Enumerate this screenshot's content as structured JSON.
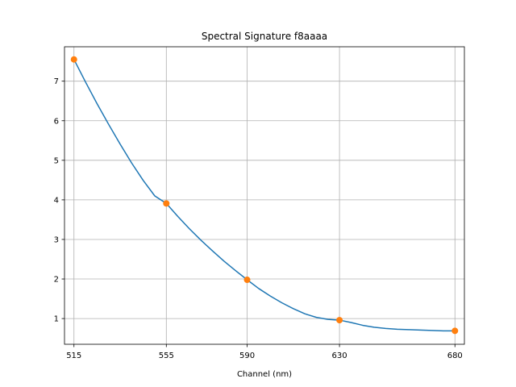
{
  "chart_data": {
    "type": "line",
    "title": "Spectral Signature f8aaaa",
    "xlabel": "Channel (nm)",
    "ylabel": "",
    "x_ticks": [
      515,
      555,
      590,
      630,
      680
    ],
    "y_ticks": [
      1,
      2,
      3,
      4,
      5,
      6,
      7
    ],
    "xlim": [
      510.9,
      684.1
    ],
    "ylim": [
      0.35,
      7.87
    ],
    "grid": true,
    "colors": {
      "curve": "#1f77b4",
      "markers": "#ff7f0e",
      "grid": "#b0b0b0"
    },
    "markers": {
      "x": [
        515,
        555,
        590,
        630,
        680
      ],
      "y": [
        7.55,
        3.91,
        1.98,
        0.96,
        0.69
      ]
    },
    "curve": {
      "x": [
        515,
        520,
        525,
        530,
        535,
        540,
        545,
        550,
        555,
        560,
        565,
        570,
        575,
        580,
        585,
        590,
        595,
        600,
        605,
        610,
        615,
        620,
        625,
        630,
        635,
        640,
        645,
        650,
        655,
        660,
        665,
        670,
        675,
        680
      ],
      "y": [
        7.55,
        6.98,
        6.43,
        5.91,
        5.41,
        4.93,
        4.49,
        4.1,
        3.91,
        3.58,
        3.27,
        2.98,
        2.71,
        2.45,
        2.21,
        1.98,
        1.76,
        1.57,
        1.4,
        1.25,
        1.12,
        1.03,
        0.98,
        0.96,
        0.9,
        0.83,
        0.78,
        0.75,
        0.73,
        0.72,
        0.71,
        0.7,
        0.69,
        0.69
      ]
    }
  }
}
